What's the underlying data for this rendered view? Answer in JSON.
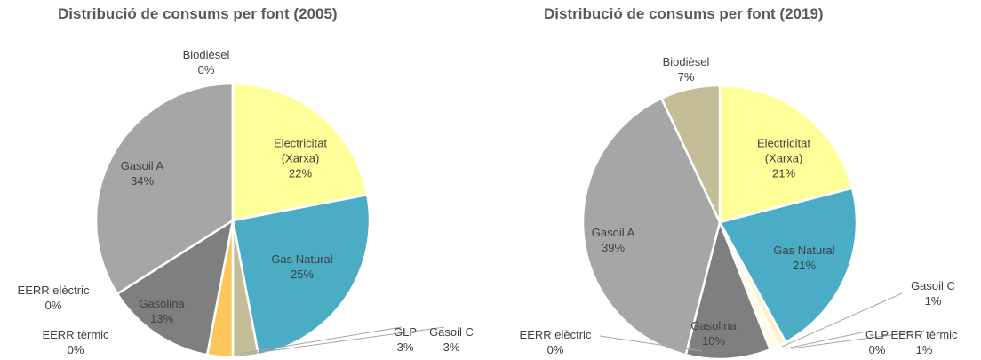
{
  "chart_data": [
    {
      "type": "pie",
      "title": "Distribució de consums per font (2005)",
      "categories": [
        "Electricitat (Xarxa)",
        "Gas Natural",
        "Gasoil C",
        "GLP",
        "EERR tèrmic",
        "EERR elèctric",
        "Gasolina",
        "Gasoil A",
        "Biodièsel"
      ],
      "values": [
        22,
        25,
        3,
        3,
        0,
        0,
        13,
        34,
        0
      ],
      "value_labels": [
        "22%",
        "25%",
        "3%",
        "3%",
        "0%",
        "0%",
        "13%",
        "34%",
        "0%"
      ],
      "colors": [
        "#ffff99",
        "#4bacc6",
        "#c4bd97",
        "#fcc75a",
        "#fff2cc",
        "#fde9d9",
        "#7f7f7f",
        "#a6a6a6",
        "#c4bd97"
      ]
    },
    {
      "type": "pie",
      "title": "Distribució de consums per font (2019)",
      "categories": [
        "Electricitat (Xarxa)",
        "Gas Natural",
        "Gasoil C",
        "GLP",
        "EERR tèrmic",
        "EERR elèctric",
        "Gasolina",
        "Gasoil A",
        "Biodièsel"
      ],
      "values": [
        21,
        21,
        1,
        0,
        1,
        0,
        10,
        39,
        7
      ],
      "value_labels": [
        "21%",
        "21%",
        "1%",
        "0%",
        "1%",
        "0%",
        "10%",
        "39%",
        "7%"
      ],
      "colors": [
        "#ffff99",
        "#4bacc6",
        "#fff2cc",
        "#fcc75a",
        "#fffbe6",
        "#fde9d9",
        "#7f7f7f",
        "#a6a6a6",
        "#c4bd97"
      ]
    }
  ]
}
